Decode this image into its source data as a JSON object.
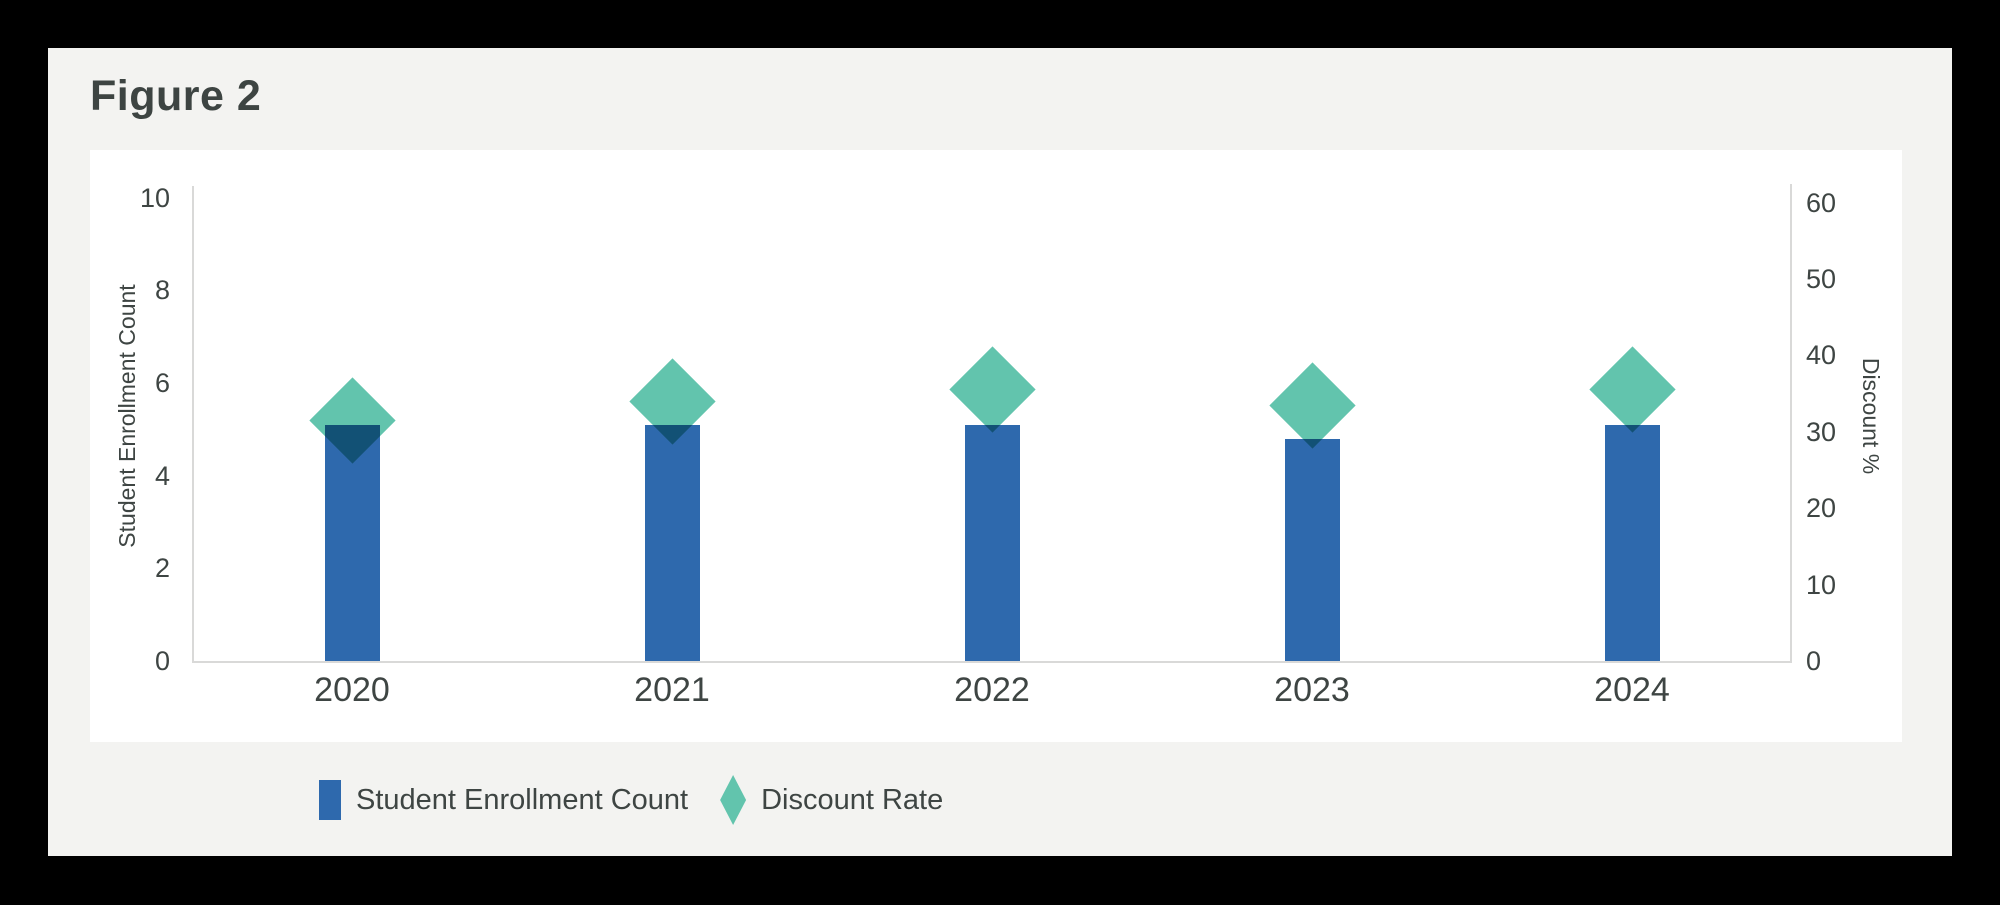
{
  "figure": {
    "title": "Figure 2"
  },
  "colors": {
    "page_bg": "#000000",
    "card_bg": "#f3f3f1",
    "panel_bg": "#ffffff",
    "bar": "#2e69ad",
    "diamond": "#62c4ad",
    "diamond_bar_overlap": "#17546e",
    "axis_line": "#d9d9d8",
    "text": "#3e4543"
  },
  "chart_data": {
    "type": "combo",
    "categories": [
      "2020",
      "2021",
      "2022",
      "2023",
      "2024"
    ],
    "series": [
      {
        "name": "Student Enrollment Count",
        "type": "bar",
        "axis": "left",
        "color": "#2e69ad",
        "values": [
          5.1,
          5.1,
          5.1,
          4.8,
          5.1
        ]
      },
      {
        "name": "Discount Rate",
        "type": "scatter",
        "marker": "diamond",
        "axis": "right",
        "color": "#62c4ad",
        "values": [
          31.5,
          34,
          35.5,
          33.5,
          35.5
        ]
      }
    ],
    "left_axis": {
      "label": "Student Enrollment Count",
      "range": [
        0,
        10
      ],
      "ticks": [
        0,
        2,
        4,
        6,
        8,
        10
      ]
    },
    "right_axis": {
      "label": "Discount %",
      "range": [
        0,
        60
      ],
      "ticks": [
        0,
        10,
        20,
        30,
        40,
        50,
        60
      ]
    },
    "grid": false,
    "legend": {
      "position": "bottom",
      "items": [
        {
          "label": "Student Enrollment Count",
          "swatch": "square",
          "color": "#2e69ad"
        },
        {
          "label": "Discount Rate",
          "swatch": "diamond",
          "color": "#62c4ad"
        }
      ]
    }
  }
}
